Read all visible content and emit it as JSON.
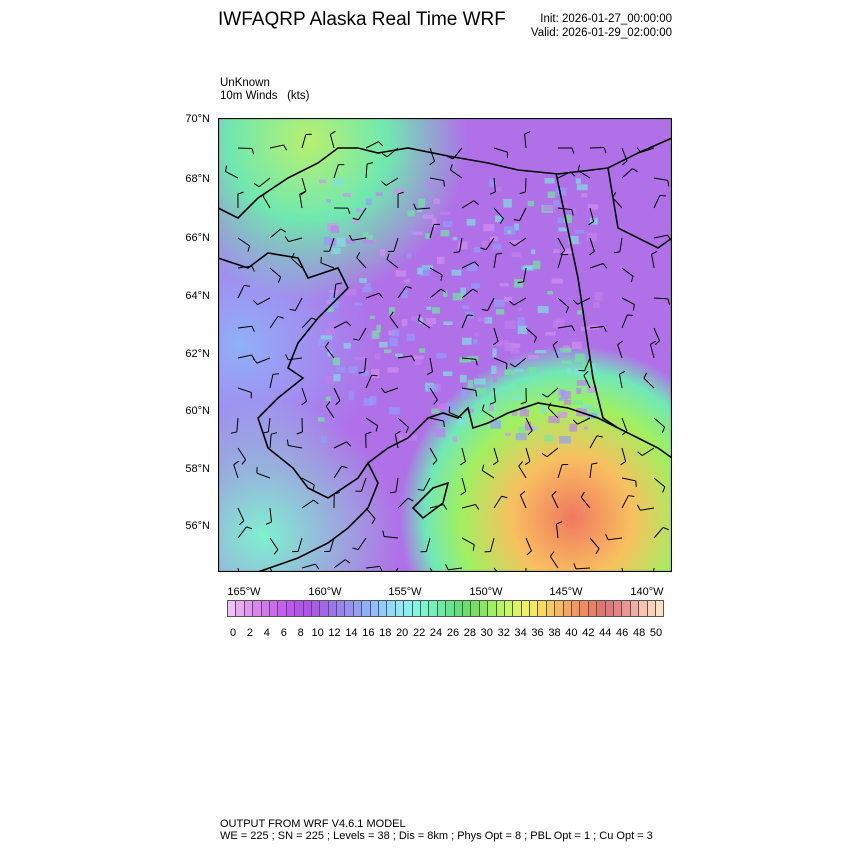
{
  "header": {
    "title": "IWFAQRP Alaska Real Time WRF",
    "init": "Init: 2026-01-27_00:00:00",
    "valid": "Valid: 2026-01-29_02:00:00"
  },
  "field": {
    "name": "UnKnown",
    "description": "10m Winds   (kts)"
  },
  "map": {
    "lat_labels": [
      "70°N",
      "68°N",
      "66°N",
      "64°N",
      "62°N",
      "60°N",
      "58°N",
      "56°N"
    ],
    "lon_labels": [
      "165°W",
      "160°W",
      "155°W",
      "150°W",
      "145°W",
      "140°W"
    ],
    "background_color": "#b070e8",
    "coastline_color": "#000000"
  },
  "colorbar": {
    "labels": [
      "0",
      "2",
      "4",
      "6",
      "8",
      "10",
      "12",
      "14",
      "16",
      "18",
      "20",
      "22",
      "24",
      "26",
      "28",
      "30",
      "32",
      "34",
      "36",
      "38",
      "40",
      "42",
      "44",
      "46",
      "48",
      "50"
    ],
    "stops": [
      "#f0c0f8",
      "#e090f0",
      "#d070f0",
      "#c058f0",
      "#b050f0",
      "#a068e8",
      "#9888f0",
      "#90a8f8",
      "#90c8ff",
      "#90e8f8",
      "#80f8e0",
      "#70f0b0",
      "#60e080",
      "#70e060",
      "#a0f060",
      "#d0f860",
      "#f8f060",
      "#f8d060",
      "#f8a860",
      "#f08860",
      "#e07070",
      "#e88c8c",
      "#f8c0b0",
      "#ffe0c0"
    ]
  },
  "footer": {
    "line1": "OUTPUT FROM WRF V4.6.1 MODEL",
    "line2": "WE = 225 ; SN = 225 ; Levels = 38 ; Dis = 8km ; Phys Opt = 8 ; PBL Opt = 1 ; Cu Opt = 3"
  }
}
